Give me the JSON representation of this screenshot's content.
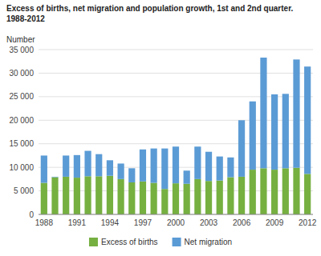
{
  "chart_data": {
    "type": "bar",
    "title": "Excess of births, net migration and population growth, 1st and 2nd quarter.",
    "subtitle": "1988-2012",
    "ylabel": "Number",
    "categories": [
      "1988",
      null,
      null,
      "1991",
      null,
      null,
      "1994",
      null,
      null,
      "1997",
      null,
      null,
      "2000",
      null,
      null,
      "2003",
      null,
      null,
      "2006",
      null,
      null,
      "2009",
      null,
      null,
      "2012"
    ],
    "series": [
      {
        "name": "Excess of births",
        "color": "#76b041",
        "values": [
          6700,
          7900,
          8000,
          7800,
          8100,
          8100,
          8200,
          7500,
          6800,
          7000,
          6700,
          5400,
          6600,
          6500,
          7500,
          7100,
          7200,
          7900,
          8000,
          9500,
          9800,
          9500,
          9800,
          9900,
          8600
        ]
      },
      {
        "name": "Net migration",
        "color": "#5b9bd5",
        "values": [
          5800,
          100,
          4500,
          4800,
          5400,
          4700,
          3300,
          3300,
          3000,
          6800,
          7300,
          8600,
          7800,
          2800,
          6900,
          6200,
          5100,
          4200,
          12000,
          14500,
          23500,
          16000,
          15800,
          23000,
          22800
        ]
      }
    ],
    "stacked": true,
    "ylim": [
      0,
      35000
    ],
    "yticks": [
      0,
      {
        "value": 5000,
        "label": "5 000"
      },
      {
        "value": 10000,
        "label": "10 000"
      },
      {
        "value": 15000,
        "label": "15 000"
      },
      {
        "value": 20000,
        "label": "20 000"
      },
      {
        "value": 25000,
        "label": "25 000"
      },
      {
        "value": 30000,
        "label": "30 000"
      },
      {
        "value": 35000,
        "label": "35 000"
      }
    ],
    "grid": true,
    "legend": "bottom"
  }
}
